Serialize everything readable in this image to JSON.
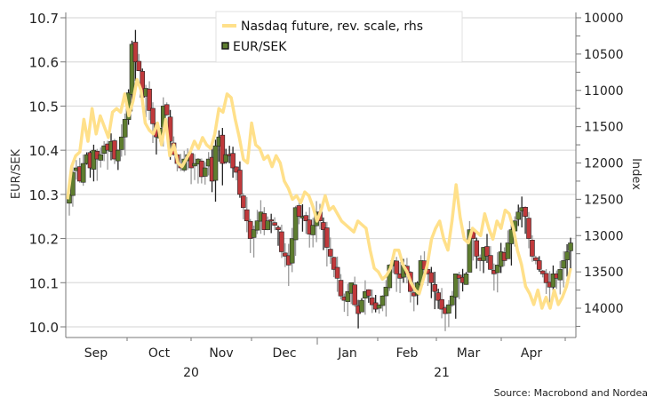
{
  "chart_data": {
    "type": "candlestick+line",
    "title": "",
    "source": "Source: Macrobond and Nordea",
    "left_axis": {
      "label": "EUR/SEK",
      "ylim": [
        10.0,
        10.7
      ],
      "ticks": [
        "10.0",
        "10.1",
        "10.2",
        "10.3",
        "10.4",
        "10.5",
        "10.6",
        "10.7"
      ]
    },
    "right_axis": {
      "label": "Index",
      "reversed": true,
      "ylim": [
        10000,
        14000
      ],
      "ticks": [
        "10000",
        "10500",
        "11000",
        "11500",
        "12000",
        "12500",
        "13000",
        "13500",
        "14000"
      ]
    },
    "x_axis": {
      "months": [
        "Sep",
        "Oct",
        "Nov",
        "Dec",
        "Jan",
        "Feb",
        "Mar",
        "Apr"
      ],
      "years": [
        "20",
        "21"
      ]
    },
    "legend": [
      {
        "label": "Nasdaq future, rev. scale, rhs",
        "color": "#FFE08A",
        "kind": "line"
      },
      {
        "label": "EUR/SEK",
        "color": "#5A7A2E",
        "kind": "candlestick"
      }
    ],
    "colors": {
      "up": "#5E7D2F",
      "down": "#C0393B",
      "wick": "#999999",
      "line": "#FFE08A",
      "grid": "#dcdcdc"
    },
    "series": [
      {
        "name": "Nasdaq future, rev. scale, rhs",
        "axis": "right",
        "values": [
          12500,
          12050,
          11900,
          11850,
          11400,
          11700,
          11250,
          11600,
          11350,
          11500,
          11650,
          11300,
          11250,
          11300,
          11050,
          11350,
          11150,
          10850,
          11000,
          11450,
          11550,
          11600,
          11450,
          11750,
          11400,
          11900,
          11750,
          12000,
          12050,
          11950,
          11850,
          11700,
          11800,
          11650,
          11750,
          11800,
          11600,
          11250,
          11300,
          11050,
          11100,
          11400,
          11650,
          11950,
          12000,
          11450,
          11750,
          11800,
          11950,
          11900,
          12050,
          11900,
          12000,
          12250,
          12350,
          12500,
          12450,
          12550,
          12400,
          12450,
          12600,
          12800,
          12650,
          12450,
          12650,
          12600,
          12700,
          12800,
          12850,
          12900,
          12950,
          12800,
          12850,
          12900,
          13200,
          13450,
          13500,
          13600,
          13550,
          13450,
          13200,
          13200,
          13400,
          13500,
          13650,
          13750,
          13800,
          13600,
          13400,
          13050,
          12900,
          12800,
          13050,
          13200,
          12800,
          12300,
          12750,
          13050,
          13100,
          12900,
          12950,
          13000,
          12700,
          12900,
          13050,
          12800,
          12900,
          12650,
          12700,
          12900,
          13200,
          13400,
          13700,
          13800,
          13950,
          13750,
          14000,
          13850,
          14000,
          13750,
          13950,
          13850,
          13700,
          13450
        ]
      },
      {
        "name": "EUR/SEK",
        "axis": "left",
        "ohlc_description": "daily candles from late Aug 2020 to late Apr 2021",
        "closes": [
          10.3,
          10.35,
          10.36,
          10.33,
          10.37,
          10.39,
          10.36,
          10.4,
          10.38,
          10.39,
          10.41,
          10.4,
          10.42,
          10.38,
          10.4,
          10.43,
          10.47,
          10.53,
          10.64,
          10.6,
          10.58,
          10.52,
          10.54,
          10.49,
          10.46,
          10.43,
          10.45,
          10.5,
          10.48,
          10.42,
          10.39,
          10.37,
          10.36,
          10.38,
          10.39,
          10.36,
          10.37,
          10.38,
          10.34,
          10.36,
          10.38,
          10.33,
          10.41,
          10.43,
          10.37,
          10.39,
          10.39,
          10.36,
          10.35,
          10.3,
          10.27,
          10.24,
          10.2,
          10.22,
          10.24,
          10.26,
          10.22,
          10.24,
          10.24,
          10.23,
          10.22,
          10.17,
          10.16,
          10.14,
          10.2,
          10.27,
          10.25,
          10.25,
          10.24,
          10.21,
          10.23,
          10.26,
          10.24,
          10.22,
          10.18,
          10.16,
          10.13,
          10.11,
          10.07,
          10.06,
          10.08,
          10.1,
          10.05,
          10.03,
          10.06,
          10.08,
          10.07,
          10.05,
          10.04,
          10.05,
          10.07,
          10.09,
          10.14,
          10.15,
          10.12,
          10.11,
          10.14,
          10.12,
          10.08,
          10.07,
          10.1,
          10.15,
          10.13,
          10.12,
          10.1,
          10.08,
          10.06,
          10.04,
          10.03,
          10.05,
          10.07,
          10.12,
          10.11,
          10.1,
          10.12,
          10.22,
          10.2,
          10.16,
          10.15,
          10.18,
          10.16,
          10.13,
          10.12,
          10.14,
          10.17,
          10.15,
          10.19,
          10.22,
          10.24,
          10.26,
          10.27,
          10.25,
          10.2,
          10.16,
          10.15,
          10.13,
          10.12,
          10.1,
          10.09,
          10.12,
          10.11,
          10.13,
          10.15,
          10.17,
          10.19
        ]
      }
    ]
  }
}
